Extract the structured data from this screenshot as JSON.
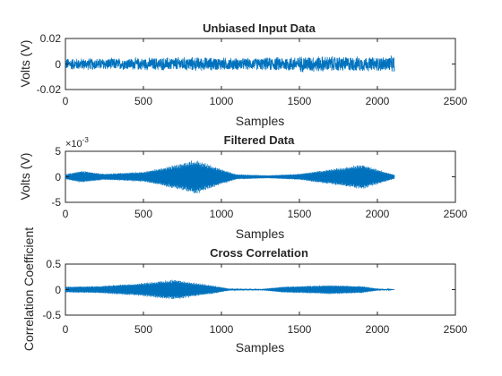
{
  "chart_data": [
    {
      "type": "line",
      "title": "Unbiased Input Data",
      "xlabel": "Samples",
      "ylabel": "Volts (V)",
      "xlim": [
        0,
        2500
      ],
      "ylim": [
        -0.02,
        0.02
      ],
      "xticks": [
        0,
        500,
        1000,
        1500,
        2000,
        2500
      ],
      "xtick_labels": [
        "0",
        "500",
        "1000",
        "1500",
        "2000",
        "2500"
      ],
      "yticks": [
        -0.02,
        0,
        0.02
      ],
      "ytick_labels": [
        "-0.02",
        "0",
        "0.02"
      ],
      "grid": false,
      "color": "#0072BD",
      "series": [
        {
          "n_samples": 2110,
          "signal": "noise",
          "envelope_x": [
            0,
            400,
            800,
            1200,
            1560,
            2000,
            2110
          ],
          "envelope_y": [
            0.005,
            0.005,
            0.006,
            0.005,
            0.007,
            0.006,
            0.007
          ]
        }
      ]
    },
    {
      "type": "line",
      "title": "Filtered Data",
      "xlabel": "Samples",
      "ylabel": "Volts (V)",
      "exponent_label": "×10",
      "exponent_power": "-3",
      "xlim": [
        0,
        2500
      ],
      "ylim": [
        -5,
        5
      ],
      "xticks": [
        0,
        500,
        1000,
        1500,
        2000,
        2500
      ],
      "xtick_labels": [
        "0",
        "500",
        "1000",
        "1500",
        "2000",
        "2500"
      ],
      "yticks": [
        -5,
        0,
        5
      ],
      "ytick_labels": [
        "-5",
        "0",
        "5"
      ],
      "grid": false,
      "color": "#0072BD",
      "series": [
        {
          "n_samples": 2110,
          "signal": "oscillation",
          "envelope_x": [
            0,
            100,
            250,
            500,
            650,
            840,
            1000,
            1100,
            1300,
            1500,
            1700,
            1900,
            2050,
            2110
          ],
          "envelope_y": [
            0.5,
            1.2,
            0.6,
            1.0,
            2.0,
            3.4,
            1.5,
            0.5,
            0.3,
            0.6,
            1.5,
            2.5,
            1.0,
            0.4
          ]
        }
      ]
    },
    {
      "type": "line",
      "title": "Cross Correlation",
      "xlabel": "Samples",
      "ylabel": "Correlation Coefficient",
      "xlim": [
        0,
        2500
      ],
      "ylim": [
        -0.5,
        0.5
      ],
      "xticks": [
        0,
        500,
        1000,
        1500,
        2000,
        2500
      ],
      "xtick_labels": [
        "0",
        "500",
        "1000",
        "1500",
        "2000",
        "2500"
      ],
      "yticks": [
        -0.5,
        0,
        0.5
      ],
      "ytick_labels": [
        "-0.5",
        "0",
        "0.5"
      ],
      "grid": false,
      "color": "#0072BD",
      "series": [
        {
          "n_samples": 2110,
          "signal": "oscillation",
          "envelope_x": [
            0,
            200,
            450,
            700,
            950,
            1050,
            1250,
            1400,
            1700,
            1900,
            2000,
            2110
          ],
          "envelope_y": [
            0.06,
            0.07,
            0.12,
            0.2,
            0.08,
            0.02,
            0.01,
            0.06,
            0.09,
            0.07,
            0.02,
            0.0
          ]
        }
      ]
    }
  ]
}
